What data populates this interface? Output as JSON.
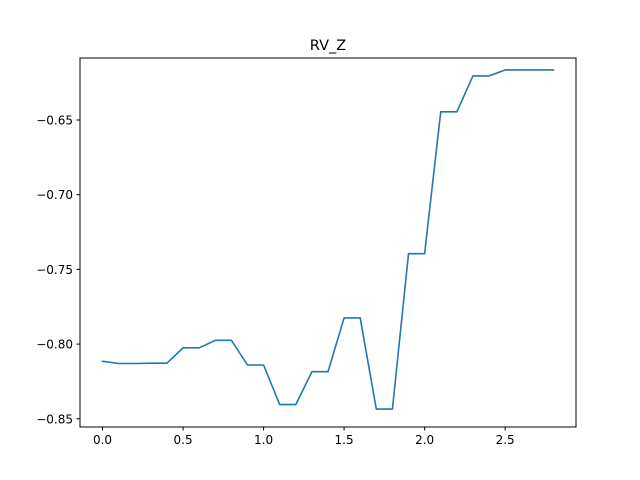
{
  "chart_data": {
    "type": "line",
    "title": "RV_Z",
    "xlabel": "",
    "ylabel": "",
    "xlim": [
      -0.14,
      2.94
    ],
    "ylim": [
      -0.8555,
      -0.6085
    ],
    "grid": false,
    "x_ticks": [
      0.0,
      0.5,
      1.0,
      1.5,
      2.0,
      2.5
    ],
    "x_tick_labels": [
      "0.0",
      "0.5",
      "1.0",
      "1.5",
      "2.0",
      "2.5"
    ],
    "y_ticks": [
      -0.65,
      -0.7,
      -0.75,
      -0.8,
      -0.85
    ],
    "y_tick_labels": [
      "−0.65",
      "−0.70",
      "−0.75",
      "−0.80",
      "−0.85"
    ],
    "series": [
      {
        "color": "#1f77b4",
        "x": [
          0.0,
          0.1,
          0.2,
          0.3,
          0.4,
          0.5,
          0.6,
          0.7,
          0.8,
          0.9,
          1.0,
          1.1,
          1.2,
          1.3,
          1.4,
          1.5,
          1.6,
          1.7,
          1.8,
          1.9,
          2.0,
          2.1,
          2.2,
          2.3,
          2.4,
          2.5,
          2.6,
          2.7,
          2.8
        ],
        "y": [
          -0.8115,
          -0.813,
          -0.813,
          -0.8128,
          -0.8128,
          -0.8025,
          -0.8025,
          -0.7975,
          -0.7975,
          -0.814,
          -0.814,
          -0.8405,
          -0.8405,
          -0.8185,
          -0.8185,
          -0.7825,
          -0.7825,
          -0.8435,
          -0.8435,
          -0.7395,
          -0.7395,
          -0.6445,
          -0.6445,
          -0.6205,
          -0.6205,
          -0.6165,
          -0.6165,
          -0.6165,
          -0.6165
        ]
      }
    ]
  }
}
